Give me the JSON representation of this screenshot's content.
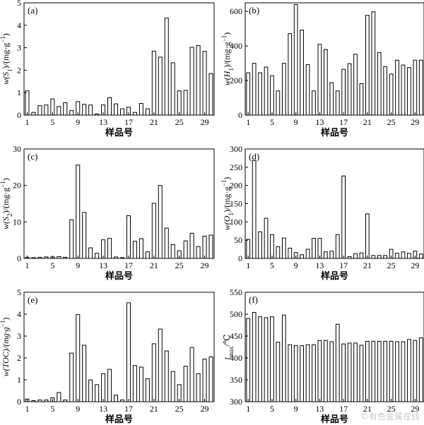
{
  "xlabel": "样品号",
  "watermark": "©有色金属在线",
  "chart_data": [
    {
      "type": "bar",
      "panel": "(a)",
      "ylabel_main": "w(S",
      "ylabel_sub": "1",
      "ylabel_rest": ")/(mg·g",
      "ylabel_sup": "−1",
      "ylabel_end": ")",
      "ylim": [
        0,
        5
      ],
      "yticks": [
        0,
        1,
        2,
        3,
        4,
        5
      ],
      "xticks": [
        1,
        5,
        9,
        13,
        17,
        21,
        25,
        29
      ],
      "x": [
        1,
        2,
        3,
        4,
        5,
        6,
        7,
        8,
        9,
        10,
        11,
        12,
        13,
        14,
        15,
        16,
        17,
        18,
        19,
        20,
        21,
        22,
        23,
        24,
        25,
        26,
        27,
        28,
        29,
        30
      ],
      "values": [
        1.08,
        0.12,
        0.42,
        0.45,
        0.72,
        0.38,
        0.55,
        0.2,
        0.6,
        0.48,
        0.45,
        0.05,
        0.45,
        0.78,
        0.5,
        0.28,
        0.35,
        0.12,
        0.52,
        0.28,
        2.85,
        2.58,
        4.32,
        2.33,
        1.08,
        1.1,
        3.02,
        3.1,
        2.84,
        1.85
      ]
    },
    {
      "type": "bar",
      "panel": "(b)",
      "ylabel_main": "w(H",
      "ylabel_sub": "1",
      "ylabel_rest": ")/(mg·g",
      "ylabel_sup": "−1",
      "ylabel_end": ")",
      "ylim": [
        0,
        650
      ],
      "yticks": [
        0,
        200,
        400,
        600
      ],
      "xticks": [
        1,
        5,
        9,
        13,
        17,
        21,
        25,
        29
      ],
      "x": [
        1,
        2,
        3,
        4,
        5,
        6,
        7,
        8,
        9,
        10,
        11,
        12,
        13,
        14,
        15,
        16,
        17,
        18,
        19,
        20,
        21,
        22,
        23,
        24,
        25,
        26,
        27,
        28,
        29,
        30
      ],
      "values": [
        245,
        300,
        245,
        278,
        228,
        140,
        300,
        472,
        640,
        492,
        292,
        140,
        410,
        380,
        188,
        140,
        265,
        298,
        352,
        182,
        578,
        598,
        362,
        280,
        238,
        318,
        290,
        275,
        318,
        318
      ]
    },
    {
      "type": "bar",
      "panel": "(c)",
      "ylabel_main": "w(S",
      "ylabel_sub": "2",
      "ylabel_rest": ")/(mg·g",
      "ylabel_sup": "−1",
      "ylabel_end": ")",
      "ylim": [
        0,
        30
      ],
      "yticks": [
        0,
        10,
        20,
        30
      ],
      "xticks": [
        1,
        5,
        9,
        13,
        17,
        21,
        25,
        29
      ],
      "x": [
        1,
        2,
        3,
        4,
        5,
        6,
        7,
        8,
        9,
        10,
        11,
        12,
        13,
        14,
        15,
        16,
        17,
        18,
        19,
        20,
        21,
        22,
        23,
        24,
        25,
        26,
        27,
        28,
        29,
        30
      ],
      "values": [
        0.3,
        0.2,
        0.3,
        0.4,
        0.4,
        0.5,
        0.3,
        10.6,
        25.6,
        12.6,
        2.9,
        1.4,
        5.1,
        5.5,
        0.4,
        0.2,
        11.7,
        4.7,
        5.4,
        1.8,
        15.1,
        20.0,
        8.3,
        3.8,
        2.1,
        4.8,
        6.9,
        3.2,
        6.1,
        6.4
      ]
    },
    {
      "type": "bar",
      "panel": "(d)",
      "ylabel_main": "w(O",
      "ylabel_sub": "1",
      "ylabel_rest": ")/(mg·g",
      "ylabel_sup": "−1",
      "ylabel_end": ")",
      "ylim": [
        0,
        300
      ],
      "yticks": [
        0,
        50,
        100,
        150,
        200,
        250,
        300
      ],
      "xticks": [
        1,
        5,
        9,
        13,
        17,
        21,
        25,
        29
      ],
      "x": [
        1,
        2,
        3,
        4,
        5,
        6,
        7,
        8,
        9,
        10,
        11,
        12,
        13,
        14,
        15,
        16,
        17,
        18,
        19,
        20,
        21,
        22,
        23,
        24,
        25,
        26,
        27,
        28,
        29,
        30
      ],
      "values": [
        52,
        268,
        73,
        110,
        65,
        32,
        56,
        28,
        16,
        10,
        25,
        55,
        55,
        18,
        20,
        65,
        226,
        5,
        13,
        15,
        122,
        8,
        8,
        8,
        25,
        14,
        18,
        14,
        20,
        12
      ]
    },
    {
      "type": "bar",
      "panel": "(e)",
      "ylabel_main": "w(TOC)/(mg·g",
      "ylabel_sub": "",
      "ylabel_rest": "",
      "ylabel_sup": "−1",
      "ylabel_end": ")",
      "ylim": [
        0,
        5
      ],
      "yticks": [
        0,
        1,
        2,
        3,
        4,
        5
      ],
      "xticks": [
        1,
        5,
        9,
        13,
        17,
        21,
        25,
        29
      ],
      "x": [
        1,
        2,
        3,
        4,
        5,
        6,
        7,
        8,
        9,
        10,
        11,
        12,
        13,
        14,
        15,
        16,
        17,
        18,
        19,
        20,
        21,
        22,
        23,
        24,
        25,
        26,
        27,
        28,
        29,
        30
      ],
      "values": [
        0.12,
        0.05,
        0.08,
        0.08,
        0.18,
        0.42,
        0.08,
        2.22,
        3.98,
        2.58,
        1.0,
        0.78,
        1.28,
        1.48,
        0.3,
        0.08,
        4.52,
        1.65,
        1.58,
        1.05,
        2.65,
        3.32,
        2.32,
        1.38,
        0.78,
        1.62,
        2.48,
        1.28,
        1.95,
        2.05
      ]
    },
    {
      "type": "bar",
      "panel": "(f)",
      "ylabel_main": "t",
      "ylabel_sub": "max",
      "ylabel_rest": "/℃",
      "ylabel_sup": "",
      "ylabel_end": "",
      "ylim": [
        300,
        550
      ],
      "yticks": [
        300,
        350,
        400,
        450,
        500,
        550
      ],
      "xticks": [
        1,
        5,
        9,
        13,
        17,
        21,
        25,
        29
      ],
      "x": [
        1,
        2,
        3,
        4,
        5,
        6,
        7,
        8,
        9,
        10,
        11,
        12,
        13,
        14,
        15,
        16,
        17,
        18,
        19,
        20,
        21,
        22,
        23,
        24,
        25,
        26,
        27,
        28,
        29,
        30
      ],
      "values": [
        490,
        504,
        494,
        492,
        494,
        436,
        498,
        430,
        428,
        428,
        430,
        430,
        440,
        440,
        437,
        477,
        432,
        434,
        434,
        429,
        438,
        438,
        438,
        438,
        438,
        437,
        437,
        442,
        440,
        446
      ]
    }
  ]
}
